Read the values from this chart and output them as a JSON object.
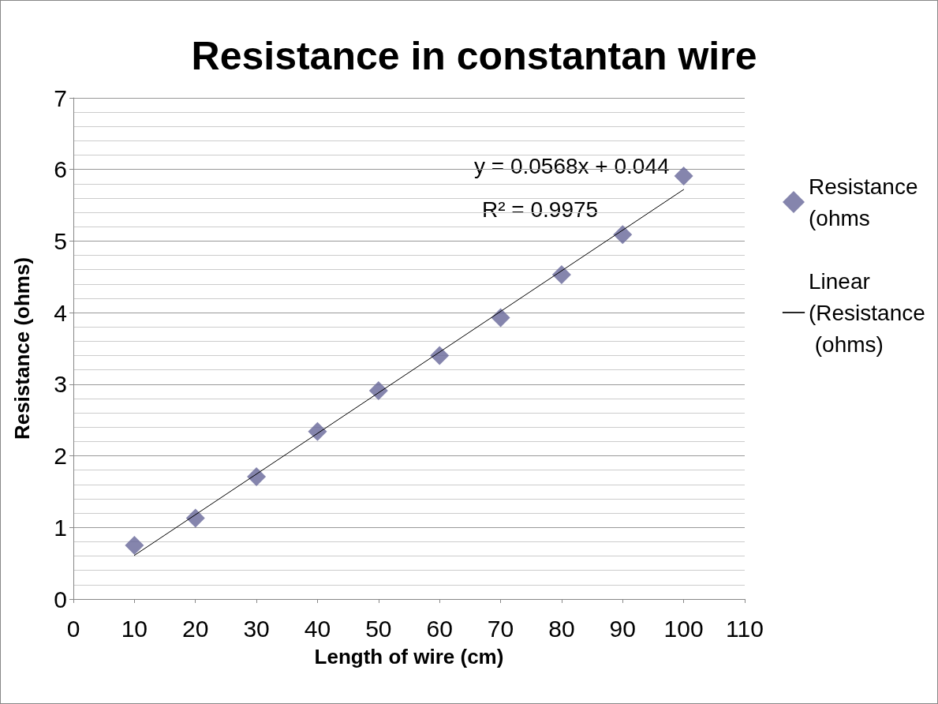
{
  "chart_data": {
    "type": "scatter",
    "title": "Resistance in constantan wire",
    "xlabel": "Length of wire (cm)",
    "ylabel": "Resistance (ohms)",
    "annotations": [
      "y = 0.0568x + 0.044",
      "R² = 0.9975"
    ],
    "series": [
      {
        "name": "Resistance (ohms",
        "color": "#666699",
        "marker": "diamond",
        "x": [
          10,
          20,
          30,
          40,
          50,
          60,
          70,
          80,
          90,
          100
        ],
        "values": [
          0.75,
          1.13,
          1.71,
          2.34,
          2.91,
          3.4,
          3.93,
          4.53,
          5.09,
          5.91
        ]
      },
      {
        "name": "Linear (Resistance (ohms)",
        "type": "line",
        "color": "#000000",
        "marker": "none",
        "line_style": "solid",
        "x": [
          10,
          100
        ],
        "values": [
          0.61,
          5.72
        ]
      }
    ],
    "xlim": [
      0,
      110
    ],
    "xticks": [
      0,
      10,
      20,
      30,
      40,
      50,
      60,
      70,
      80,
      90,
      100,
      110
    ],
    "ylim": [
      0,
      7
    ],
    "yticks": [
      0,
      1,
      2,
      3,
      4,
      5,
      6,
      7
    ],
    "grid": "y",
    "legend": "right"
  }
}
